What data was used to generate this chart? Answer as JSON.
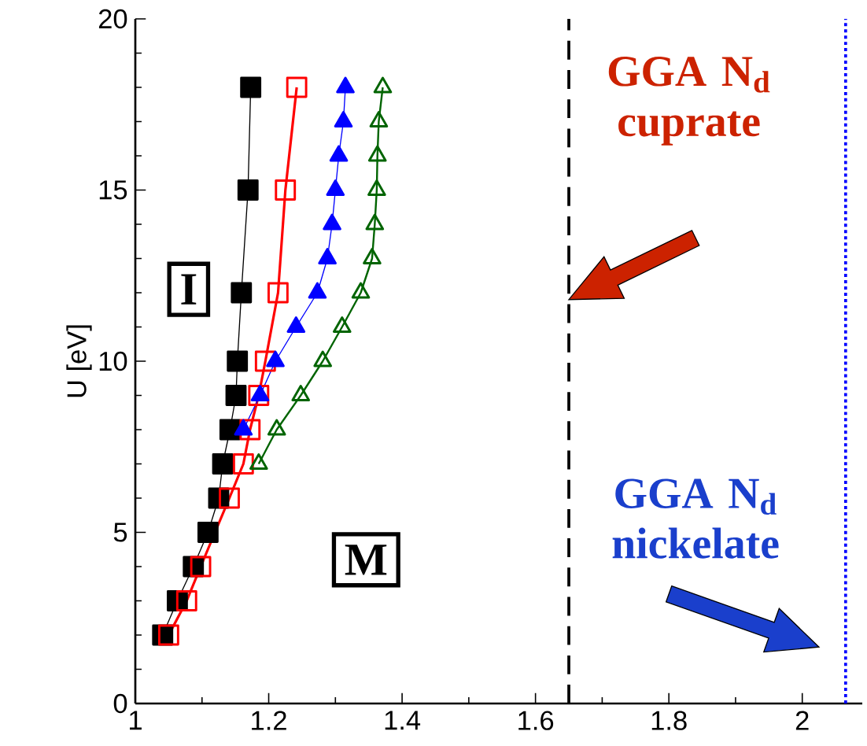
{
  "chart_data": {
    "type": "line",
    "ylabel": "U [eV]",
    "xlim": [
      1,
      2.09
    ],
    "ylim": [
      0,
      20
    ],
    "xticks": [
      1,
      1.2,
      1.4,
      1.6,
      1.8,
      2
    ],
    "yticks": [
      0,
      5,
      10,
      15,
      20
    ],
    "series": [
      {
        "color": "#000000",
        "marker": "square",
        "x": [
          1.041,
          1.063,
          1.087,
          1.109,
          1.125,
          1.131,
          1.142,
          1.151,
          1.153,
          1.159,
          1.169,
          1.173
        ],
        "values": [
          2,
          3,
          4,
          5,
          6,
          7,
          8,
          9,
          10,
          12,
          15,
          18
        ]
      },
      {
        "color": "#ff0000",
        "marker": "square",
        "x": [
          1.05,
          1.077,
          1.098,
          1.141,
          1.162,
          1.172,
          1.185,
          1.195,
          1.214,
          1.225,
          1.242
        ],
        "values": [
          2,
          3,
          4,
          6,
          7,
          8,
          9,
          10,
          12,
          15,
          18
        ]
      },
      {
        "color": "#0000ff",
        "marker": "triangle",
        "x": [
          1.162,
          1.187,
          1.21,
          1.241,
          1.273,
          1.288,
          1.295,
          1.3,
          1.305,
          1.312,
          1.315
        ],
        "values": [
          8,
          9,
          10,
          11,
          12,
          13,
          14,
          15,
          16,
          17,
          18
        ]
      },
      {
        "color": "#006400",
        "marker": "triangle",
        "x": [
          1.185,
          1.212,
          1.248,
          1.281,
          1.31,
          1.338,
          1.355,
          1.359,
          1.362,
          1.363,
          1.365,
          1.371
        ],
        "values": [
          7,
          8,
          9,
          10,
          11,
          12,
          13,
          14,
          15,
          16,
          17,
          18
        ]
      }
    ],
    "ref_lines": [
      {
        "axis": "x",
        "value": 1.65,
        "label": "GGA N$_{d}$ cuprate",
        "color": "#000000",
        "line_style": "dashed"
      },
      {
        "axis": "x",
        "value": 2.065,
        "label": "GGA N$_{d}$ nickelate",
        "color": "#0000ff",
        "line_style": "dotted"
      }
    ],
    "annotations": [
      "I",
      "M"
    ]
  }
}
